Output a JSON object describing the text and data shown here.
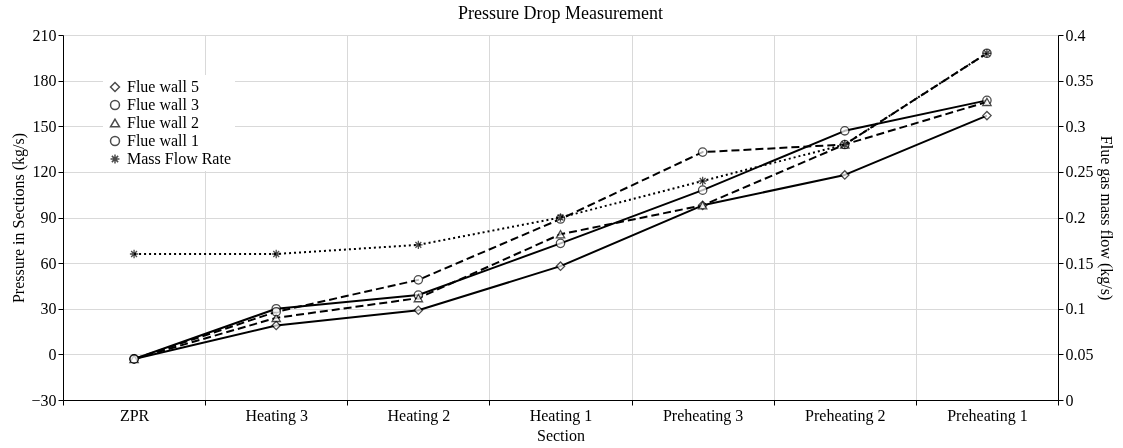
{
  "chart_data": {
    "type": "line",
    "title": "Pressure Drop Measurement",
    "xlabel": "Section",
    "ylabel": "Pressure in Sections (kg/s)",
    "y2label": "Flue gas mass flow (kg/s)",
    "categories": [
      "ZPR",
      "Heating 3",
      "Heating 2",
      "Heating 1",
      "Preheating 3",
      "Preheating 2",
      "Preheating 1"
    ],
    "series": [
      {
        "name": "Flue wall 5",
        "color": "#000000",
        "marker": "diamond",
        "line_style": "solid",
        "values": [
          -3,
          19,
          29,
          58,
          98,
          118,
          157
        ]
      },
      {
        "name": "Flue wall 3",
        "color": "#000000",
        "marker": "circle",
        "line_style": "solid",
        "values": [
          -3,
          30,
          39,
          73,
          108,
          147,
          167
        ]
      },
      {
        "name": "Flue wall 2",
        "color": "#000000",
        "marker": "triangle",
        "line_style": "dashed",
        "values": [
          -3,
          24,
          37,
          79,
          98,
          138,
          166
        ]
      },
      {
        "name": "Flue wall 1",
        "color": "#000000",
        "marker": "circle",
        "line_style": "dashed",
        "values": [
          -3,
          28,
          49,
          89,
          133,
          138,
          198
        ]
      },
      {
        "name": "Mass Flow Rate",
        "color": "#000000",
        "marker": "cross",
        "line_style": "dotted",
        "axis": "y2",
        "values": [
          0.16,
          0.16,
          0.17,
          0.2,
          0.24,
          0.28,
          0.38
        ]
      }
    ],
    "ylim": [
      -30,
      210
    ],
    "yticks": [
      -30,
      0,
      30,
      60,
      90,
      120,
      150,
      180,
      210
    ],
    "y2lim": [
      0,
      0.4
    ],
    "y2ticks": [
      0,
      0.05,
      0.1,
      0.15,
      0.2,
      0.25,
      0.3,
      0.35,
      0.4
    ],
    "grid": true,
    "legend": "top left"
  }
}
